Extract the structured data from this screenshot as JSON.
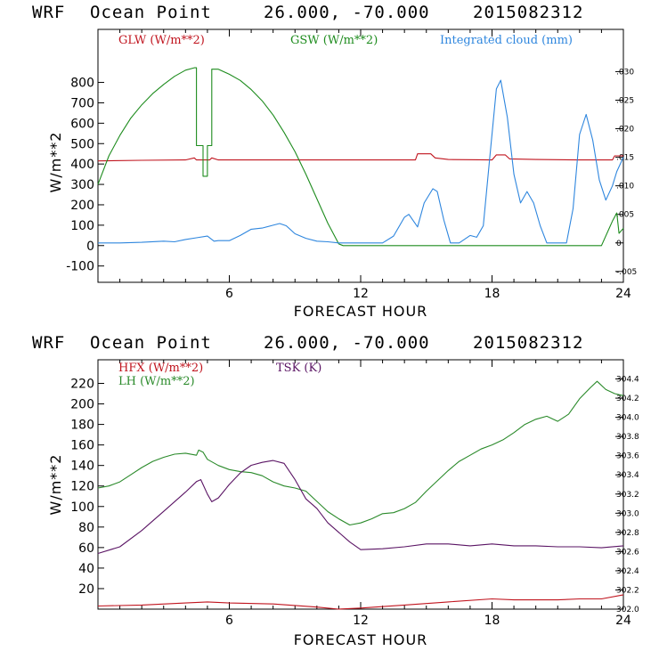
{
  "panels": [
    {
      "header": {
        "model": "WRF",
        "location": "Ocean Point",
        "coords": "26.000, -70.000",
        "datetime": "2015082312"
      },
      "xlabel": "FORECAST HOUR",
      "ylabel": "W/m**2"
    },
    {
      "header": {
        "model": "WRF",
        "location": "Ocean Point",
        "coords": "26.000, -70.000",
        "datetime": "2015082312"
      },
      "xlabel": "FORECAST HOUR",
      "ylabel": "W/m**2"
    }
  ],
  "chart_data": [
    {
      "type": "line",
      "xlabel": "FORECAST HOUR",
      "ylabel": "W/m**2",
      "xlim": [
        0,
        24
      ],
      "ylim": [
        -180,
        1060
      ],
      "x_ticks": [
        6,
        12,
        18,
        24
      ],
      "y_ticks": [
        -100,
        0,
        100,
        200,
        300,
        400,
        500,
        600,
        700,
        800
      ],
      "y2lim": [
        -0.0069,
        0.0374
      ],
      "y2_ticks": [
        ".030",
        ".025",
        ".020",
        ".015",
        ".010",
        ".005",
        "0",
        "-.005"
      ],
      "y2_tick_values": [
        0.03,
        0.025,
        0.02,
        0.015,
        0.01,
        0.005,
        0,
        -0.005
      ],
      "series": [
        {
          "name": "GLW (W/m**2)",
          "color": "#c0141e",
          "axis": "left",
          "points": [
            [
              0,
              415
            ],
            [
              2,
              418
            ],
            [
              4,
              420
            ],
            [
              4.4,
              430
            ],
            [
              4.5,
              420
            ],
            [
              5.1,
              420
            ],
            [
              5.2,
              430
            ],
            [
              5.5,
              420
            ],
            [
              8,
              420
            ],
            [
              12,
              420
            ],
            [
              13.5,
              420
            ],
            [
              14.5,
              420
            ],
            [
              14.6,
              450
            ],
            [
              15.2,
              450
            ],
            [
              15.4,
              430
            ],
            [
              16,
              422
            ],
            [
              18,
              420
            ],
            [
              18.2,
              445
            ],
            [
              18.6,
              445
            ],
            [
              18.8,
              425
            ],
            [
              20,
              422
            ],
            [
              22,
              420
            ],
            [
              23.5,
              420
            ],
            [
              23.6,
              440
            ],
            [
              24,
              440
            ]
          ]
        },
        {
          "name": "GSW (W/m**2)",
          "color": "#1e8c1e",
          "axis": "left",
          "points": [
            [
              0,
              300
            ],
            [
              0.5,
              440
            ],
            [
              1,
              540
            ],
            [
              1.5,
              625
            ],
            [
              2,
              690
            ],
            [
              2.5,
              745
            ],
            [
              3,
              790
            ],
            [
              3.5,
              830
            ],
            [
              4,
              860
            ],
            [
              4.4,
              872
            ],
            [
              4.5,
              872
            ],
            [
              4.5,
              490
            ],
            [
              4.8,
              490
            ],
            [
              4.8,
              340
            ],
            [
              5.0,
              340
            ],
            [
              5.0,
              490
            ],
            [
              5.2,
              490
            ],
            [
              5.2,
              865
            ],
            [
              5.5,
              865
            ],
            [
              6,
              840
            ],
            [
              6.5,
              810
            ],
            [
              7,
              765
            ],
            [
              7.5,
              710
            ],
            [
              8,
              640
            ],
            [
              8.5,
              555
            ],
            [
              9,
              460
            ],
            [
              9.5,
              350
            ],
            [
              10,
              230
            ],
            [
              10.5,
              110
            ],
            [
              11,
              8
            ],
            [
              11.2,
              0
            ],
            [
              13,
              0
            ],
            [
              16,
              0
            ],
            [
              20,
              0
            ],
            [
              23,
              0
            ],
            [
              23.5,
              120
            ],
            [
              23.7,
              160
            ],
            [
              23.8,
              60
            ],
            [
              24,
              85
            ]
          ]
        },
        {
          "name": "Integrated cloud (mm)",
          "color": "#2e86de",
          "axis": "right",
          "points": [
            [
              0,
              0
            ],
            [
              1,
              0
            ],
            [
              2,
              0.0001
            ],
            [
              3,
              0.0003
            ],
            [
              3.5,
              0.0002
            ],
            [
              4,
              0.0006
            ],
            [
              4.5,
              0.0009
            ],
            [
              5,
              0.0012
            ],
            [
              5.3,
              0.0003
            ],
            [
              5.5,
              0.0004
            ],
            [
              6,
              0.0004
            ],
            [
              6.5,
              0.0013
            ],
            [
              7,
              0.0024
            ],
            [
              7.5,
              0.0026
            ],
            [
              8,
              0.0031
            ],
            [
              8.3,
              0.0034
            ],
            [
              8.6,
              0.003
            ],
            [
              9,
              0.0016
            ],
            [
              9.5,
              0.0008
            ],
            [
              10,
              0.0003
            ],
            [
              10.5,
              0.0002
            ],
            [
              11,
              0
            ],
            [
              12,
              0
            ],
            [
              13,
              0
            ],
            [
              13.5,
              0.0012
            ],
            [
              14,
              0.0045
            ],
            [
              14.2,
              0.005
            ],
            [
              14.6,
              0.0028
            ],
            [
              14.9,
              0.007
            ],
            [
              15.3,
              0.0095
            ],
            [
              15.5,
              0.009
            ],
            [
              15.8,
              0.004
            ],
            [
              16.1,
              0
            ],
            [
              16.5,
              0
            ],
            [
              17,
              0.0013
            ],
            [
              17.3,
              0.001
            ],
            [
              17.6,
              0.003
            ],
            [
              17.9,
              0.015
            ],
            [
              18.2,
              0.027
            ],
            [
              18.4,
              0.0285
            ],
            [
              18.7,
              0.022
            ],
            [
              19,
              0.012
            ],
            [
              19.3,
              0.007
            ],
            [
              19.6,
              0.009
            ],
            [
              19.9,
              0.007
            ],
            [
              20.2,
              0.003
            ],
            [
              20.5,
              0
            ],
            [
              21,
              0
            ],
            [
              21.4,
              0
            ],
            [
              21.7,
              0.006
            ],
            [
              22,
              0.019
            ],
            [
              22.3,
              0.0225
            ],
            [
              22.6,
              0.018
            ],
            [
              22.9,
              0.011
            ],
            [
              23.2,
              0.0075
            ],
            [
              23.5,
              0.01
            ],
            [
              23.7,
              0.0125
            ],
            [
              24,
              0.015
            ]
          ]
        }
      ],
      "legend": [
        "GLW (W/m**2)",
        "GSW (W/m**2)",
        "Integrated cloud (mm)"
      ]
    },
    {
      "type": "line",
      "xlabel": "FORECAST HOUR",
      "ylabel": "W/m**2",
      "xlim": [
        0,
        24
      ],
      "ylim": [
        0,
        243
      ],
      "x_ticks": [
        6,
        12,
        18,
        24
      ],
      "y_ticks": [
        20,
        40,
        60,
        80,
        100,
        120,
        140,
        160,
        180,
        200,
        220
      ],
      "y2lim": [
        302.0,
        304.6
      ],
      "y2_ticks": [
        "304.4",
        "304.2",
        "304.0",
        "303.8",
        "303.6",
        "303.4",
        "303.2",
        "303.0",
        "302.8",
        "302.6",
        "302.4",
        "302.2",
        "302.0"
      ],
      "y2_tick_values": [
        304.4,
        304.2,
        304.0,
        303.8,
        303.6,
        303.4,
        303.2,
        303.0,
        302.8,
        302.6,
        302.4,
        302.2,
        302.0
      ],
      "series": [
        {
          "name": "HFX (W/m**2)",
          "color": "#c0141e",
          "axis": "left",
          "points": [
            [
              0,
              3
            ],
            [
              2,
              4
            ],
            [
              4,
              6
            ],
            [
              5,
              7
            ],
            [
              6,
              6
            ],
            [
              8,
              5
            ],
            [
              10,
              2
            ],
            [
              11,
              0
            ],
            [
              12,
              1
            ],
            [
              14,
              4
            ],
            [
              16,
              7
            ],
            [
              18,
              10
            ],
            [
              19,
              9
            ],
            [
              21,
              9
            ],
            [
              22,
              10
            ],
            [
              23,
              10
            ],
            [
              24,
              14
            ]
          ]
        },
        {
          "name": "LH (W/m**2)",
          "color": "#2a8a2a",
          "axis": "left",
          "points": [
            [
              0,
              118
            ],
            [
              0.5,
              120
            ],
            [
              1,
              124
            ],
            [
              1.5,
              131
            ],
            [
              2,
              138
            ],
            [
              2.5,
              144
            ],
            [
              3,
              148
            ],
            [
              3.5,
              151
            ],
            [
              4,
              152
            ],
            [
              4.5,
              150
            ],
            [
              4.6,
              155
            ],
            [
              4.8,
              153
            ],
            [
              5,
              146
            ],
            [
              5.5,
              140
            ],
            [
              6,
              136
            ],
            [
              6.5,
              134
            ],
            [
              7,
              133
            ],
            [
              7.5,
              130
            ],
            [
              8,
              124
            ],
            [
              8.5,
              120
            ],
            [
              9,
              118
            ],
            [
              9.5,
              115
            ],
            [
              10,
              105
            ],
            [
              10.5,
              95
            ],
            [
              11,
              88
            ],
            [
              11.5,
              82
            ],
            [
              12,
              84
            ],
            [
              12.5,
              88
            ],
            [
              13,
              93
            ],
            [
              13.5,
              94
            ],
            [
              14,
              98
            ],
            [
              14.5,
              104
            ],
            [
              15,
              115
            ],
            [
              15.5,
              125
            ],
            [
              16,
              135
            ],
            [
              16.5,
              144
            ],
            [
              17,
              150
            ],
            [
              17.5,
              156
            ],
            [
              18,
              160
            ],
            [
              18.5,
              165
            ],
            [
              19,
              172
            ],
            [
              19.5,
              180
            ],
            [
              20,
              185
            ],
            [
              20.5,
              188
            ],
            [
              21,
              183
            ],
            [
              21.5,
              190
            ],
            [
              22,
              205
            ],
            [
              22.5,
              216
            ],
            [
              22.8,
              222
            ],
            [
              23.2,
              214
            ],
            [
              23.6,
              210
            ],
            [
              24,
              208
            ]
          ]
        },
        {
          "name": "TSK (K)",
          "color": "#5a1464",
          "axis": "right",
          "points": [
            [
              0,
              302.58
            ],
            [
              1,
              302.65
            ],
            [
              2,
              302.82
            ],
            [
              3,
              303.02
            ],
            [
              4,
              303.22
            ],
            [
              4.5,
              303.33
            ],
            [
              4.7,
              303.35
            ],
            [
              5,
              303.2
            ],
            [
              5.2,
              303.12
            ],
            [
              5.5,
              303.16
            ],
            [
              6,
              303.3
            ],
            [
              6.5,
              303.42
            ],
            [
              7,
              303.5
            ],
            [
              7.5,
              303.53
            ],
            [
              8,
              303.55
            ],
            [
              8.5,
              303.52
            ],
            [
              9,
              303.35
            ],
            [
              9.5,
              303.15
            ],
            [
              10,
              303.05
            ],
            [
              10.5,
              302.9
            ],
            [
              11,
              302.8
            ],
            [
              11.5,
              302.7
            ],
            [
              12,
              302.62
            ],
            [
              13,
              302.63
            ],
            [
              14,
              302.65
            ],
            [
              15,
              302.68
            ],
            [
              16,
              302.68
            ],
            [
              17,
              302.66
            ],
            [
              18,
              302.68
            ],
            [
              19,
              302.66
            ],
            [
              20,
              302.66
            ],
            [
              21,
              302.65
            ],
            [
              22,
              302.65
            ],
            [
              23,
              302.64
            ],
            [
              24,
              302.66
            ]
          ]
        }
      ],
      "legend": [
        "HFX (W/m**2)",
        "LH (W/m**2)",
        "TSK (K)"
      ]
    }
  ]
}
